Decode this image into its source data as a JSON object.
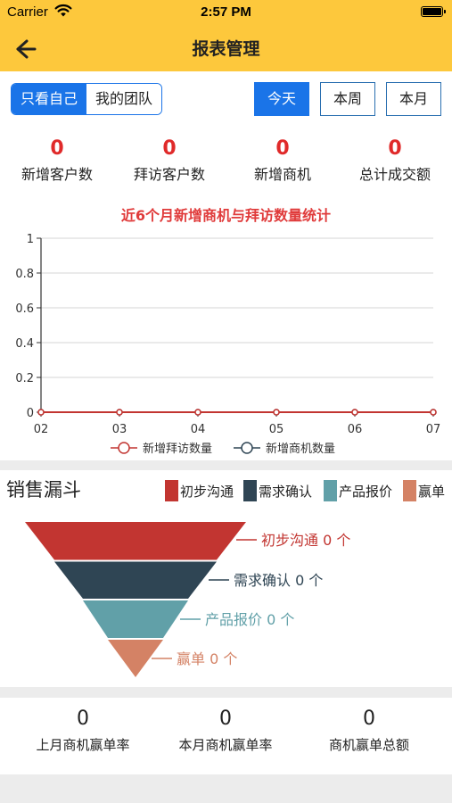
{
  "status_bar": {
    "carrier": "Carrier",
    "time": "2:57 PM"
  },
  "header": {
    "title": "报表管理"
  },
  "scope_tabs": {
    "self": "只看自己",
    "team": "我的团队"
  },
  "period_buttons": {
    "today": "今天",
    "week": "本周",
    "month": "本月"
  },
  "stats": [
    {
      "value": "0",
      "label": "新增客户数"
    },
    {
      "value": "0",
      "label": "拜访客户数"
    },
    {
      "value": "0",
      "label": "新增商机"
    },
    {
      "value": "0",
      "label": "总计成交额"
    }
  ],
  "chart_data": {
    "type": "line",
    "title": "近6个月新增商机与拜访数量统计",
    "x": [
      "02",
      "03",
      "04",
      "05",
      "06",
      "07"
    ],
    "yticks": [
      "0",
      "0.2",
      "0.4",
      "0.6",
      "0.8",
      "1"
    ],
    "ylim": [
      0,
      1
    ],
    "grid": true,
    "legend_position": "bottom",
    "series": [
      {
        "name": "新增拜访数量",
        "values": [
          0,
          0,
          0,
          0,
          0,
          0
        ],
        "color": "#c23531"
      },
      {
        "name": "新增商机数量",
        "values": [
          0,
          0,
          0,
          0,
          0,
          0
        ],
        "color": "#2f4554"
      }
    ]
  },
  "funnel": {
    "title": "销售漏斗",
    "legend": [
      {
        "label": "初步沟通",
        "color": "#c23531"
      },
      {
        "label": "需求确认",
        "color": "#2f4554"
      },
      {
        "label": "产品报价",
        "color": "#61a0a8"
      },
      {
        "label": "赢单",
        "color": "#d48265"
      }
    ],
    "stages": [
      {
        "label": "初步沟通 0 个",
        "color": "#c23531"
      },
      {
        "label": "需求确认 0 个",
        "color": "#2f4554"
      },
      {
        "label": "产品报价 0 个",
        "color": "#61a0a8"
      },
      {
        "label": "赢单 0 个",
        "color": "#d48265"
      }
    ]
  },
  "bottom_stats": [
    {
      "value": "0",
      "label": "上月商机赢单率"
    },
    {
      "value": "0",
      "label": "本月商机赢单率"
    },
    {
      "value": "0",
      "label": "商机赢单总额"
    }
  ]
}
